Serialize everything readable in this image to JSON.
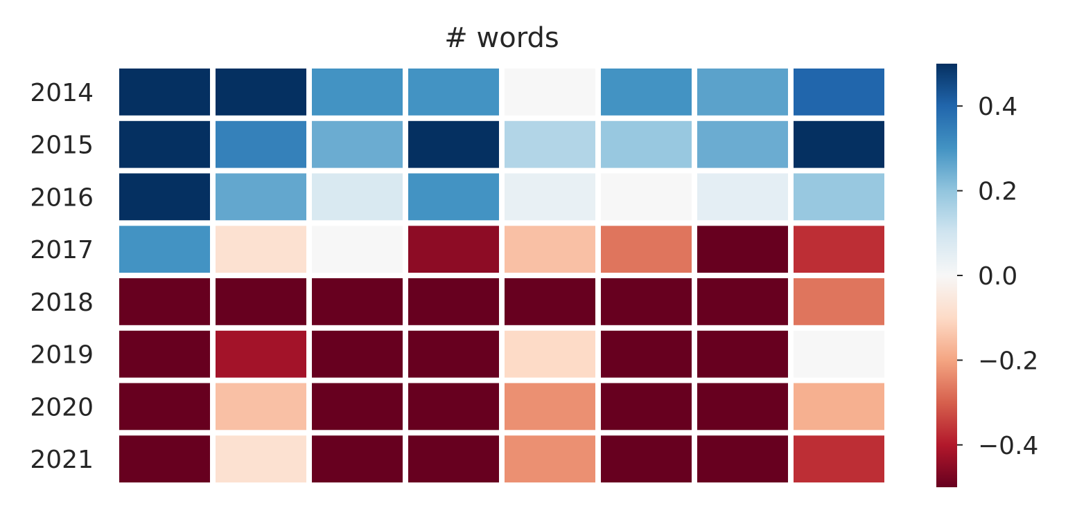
{
  "chart_data": {
    "type": "heatmap",
    "title": "# words",
    "xlabel": "",
    "ylabel": "",
    "rows": [
      "2014",
      "2015",
      "2016",
      "2017",
      "2018",
      "2019",
      "2020",
      "2021"
    ],
    "columns": [
      "",
      "",
      "",
      "",
      "",
      "",
      "",
      ""
    ],
    "values": [
      [
        0.55,
        0.55,
        0.3,
        0.3,
        0.0,
        0.3,
        0.27,
        0.4
      ],
      [
        0.55,
        0.34,
        0.25,
        0.55,
        0.15,
        0.19,
        0.25,
        0.55
      ],
      [
        0.55,
        0.26,
        0.08,
        0.3,
        0.04,
        0.0,
        0.05,
        0.19
      ],
      [
        0.3,
        -0.08,
        0.0,
        -0.45,
        -0.15,
        -0.27,
        -0.55,
        -0.37
      ],
      [
        -0.55,
        -0.55,
        -0.55,
        -0.55,
        -0.5,
        -0.55,
        -0.55,
        -0.27
      ],
      [
        -0.55,
        -0.42,
        -0.55,
        -0.55,
        -0.1,
        -0.55,
        -0.55,
        0.0
      ],
      [
        -0.55,
        -0.15,
        -0.55,
        -0.55,
        -0.23,
        -0.55,
        -0.55,
        -0.18
      ],
      [
        -0.55,
        -0.08,
        -0.55,
        -0.55,
        -0.23,
        -0.55,
        -0.55,
        -0.37
      ]
    ],
    "colormap": "RdBu",
    "vmin": -0.5,
    "vmax": 0.5,
    "colorbar": {
      "ticks": [
        0.4,
        0.2,
        0.0,
        -0.2,
        -0.4
      ],
      "tick_labels": [
        "0.4",
        "0.2",
        "0.0",
        "−0.2",
        "−0.4"
      ]
    },
    "grid": false,
    "legend": "colorbar-right"
  }
}
